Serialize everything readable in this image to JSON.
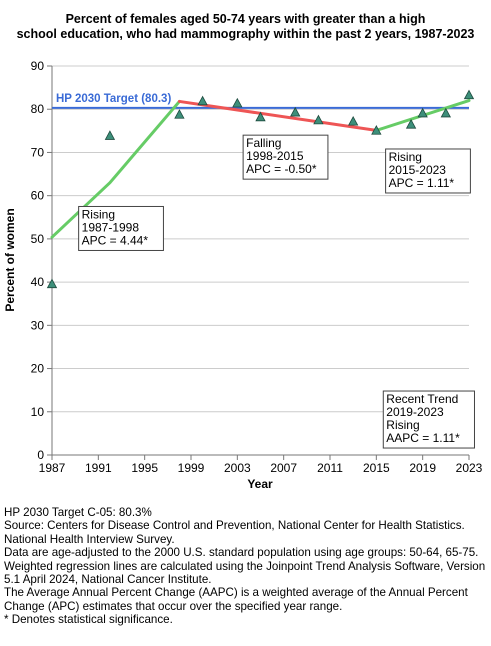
{
  "chart_data": {
    "type": "line",
    "title_lines": [
      "Percent of females aged 50-74 years with greater than a high",
      "school education, who had mammography within the past 2 years, 1987-2023"
    ],
    "xlabel": "Year",
    "ylabel": "Percent of women",
    "xlim": [
      1987,
      2023
    ],
    "ylim": [
      0,
      90
    ],
    "xticks": [
      1987,
      1991,
      1995,
      1999,
      2003,
      2007,
      2011,
      2015,
      2019,
      2023
    ],
    "yticks": [
      0,
      10,
      20,
      30,
      40,
      50,
      60,
      70,
      80,
      90
    ],
    "grid": true,
    "observed": {
      "x": [
        1987,
        1992,
        1998,
        2000,
        2003,
        2005,
        2008,
        2010,
        2013,
        2015,
        2018,
        2019,
        2021,
        2023
      ],
      "y": [
        39.6,
        73.9,
        78.8,
        81.9,
        81.4,
        78.2,
        79.3,
        77.5,
        77.2,
        75.1,
        76.5,
        79.1,
        79.1,
        83.3
      ]
    },
    "trend_segments": [
      {
        "x": [
          1987,
          1992,
          1998
        ],
        "y": [
          50.4,
          63.0,
          81.8
        ],
        "color": "#66cc66"
      },
      {
        "x": [
          1998,
          2015
        ],
        "y": [
          81.8,
          75.1
        ],
        "color": "#ee5555"
      },
      {
        "x": [
          2015,
          2023
        ],
        "y": [
          75.1,
          82.0
        ],
        "color": "#66cc66"
      }
    ],
    "target": {
      "label": "HP 2030 Target (80.3)",
      "value": 80.3,
      "color": "#3a6bd6"
    },
    "annotations": [
      {
        "lines": [
          "Rising",
          "1987-1998",
          "APC =  4.44*"
        ],
        "anchor": [
          1989.3,
          57.5
        ]
      },
      {
        "lines": [
          "Falling",
          "1998-2015",
          "APC = -0.50*"
        ],
        "anchor": [
          2003.5,
          74.0
        ]
      },
      {
        "lines": [
          "Rising",
          "2015-2023",
          "APC =  1.11*"
        ],
        "anchor": [
          2015.8,
          70.8
        ]
      },
      {
        "lines": [
          "Recent Trend",
          "2019-2023",
          "Rising",
          "AAPC =  1.11*"
        ],
        "anchor": [
          2015.6,
          14.8
        ]
      }
    ],
    "colors": {
      "markers": "#3d8f7a",
      "grid": "#cccccc",
      "axis": "#777777"
    }
  },
  "notes": [
    "HP 2030 Target C-05: 80.3%",
    "Source: Centers for Disease Control and Prevention, National Center for Health Statistics. National Health Interview Survey.",
    "Data are age-adjusted to the 2000 U.S. standard population using age groups: 50-64, 65-75.",
    "Weighted regression lines are calculated using the Joinpoint Trend Analysis Software, Version 5.1 April 2024, National Cancer Institute.",
    "The Average Annual Percent Change (AAPC) is a weighted average of the Annual Percent Change (APC) estimates that occur over the specified year range.",
    "* Denotes statistical significance."
  ]
}
